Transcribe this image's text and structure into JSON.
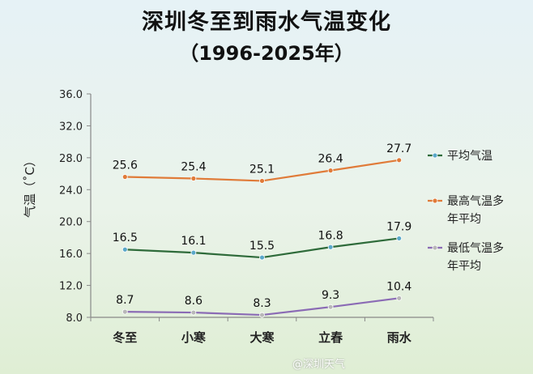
{
  "chart_data": {
    "type": "line",
    "title": "深圳冬至到雨水气温变化",
    "subtitle": "（1996-2025年）",
    "ylabel": "气温（˚C）",
    "xlabel": "",
    "categories": [
      "冬至",
      "小寒",
      "大寒",
      "立春",
      "雨水"
    ],
    "ylim": [
      8.0,
      36.0
    ],
    "yticks": [
      "8.0",
      "12.0",
      "16.0",
      "20.0",
      "24.0",
      "28.0",
      "32.0",
      "36.0"
    ],
    "grid": false,
    "legend_position": "right",
    "series": [
      {
        "name": "平均气温",
        "values": [
          16.5,
          16.1,
          15.5,
          16.8,
          17.9
        ],
        "labels": [
          "16.5",
          "16.1",
          "15.5",
          "16.8",
          "17.9"
        ],
        "color": "#2e6b3a",
        "marker_color": "#5aa8c9"
      },
      {
        "name": "最高气温多年平均",
        "values": [
          25.6,
          25.4,
          25.1,
          26.4,
          27.7
        ],
        "labels": [
          "25.6",
          "25.4",
          "25.1",
          "26.4",
          "27.7"
        ],
        "color": "#e07b39",
        "marker_color": "#e07b39"
      },
      {
        "name": "最低气温多年平均",
        "values": [
          8.7,
          8.6,
          8.3,
          9.3,
          10.4
        ],
        "labels": [
          "8.7",
          "8.6",
          "8.3",
          "9.3",
          "10.4"
        ],
        "color": "#8b6bb5",
        "marker_color": "#b8b8b8"
      }
    ]
  },
  "watermark": "@深圳天气"
}
